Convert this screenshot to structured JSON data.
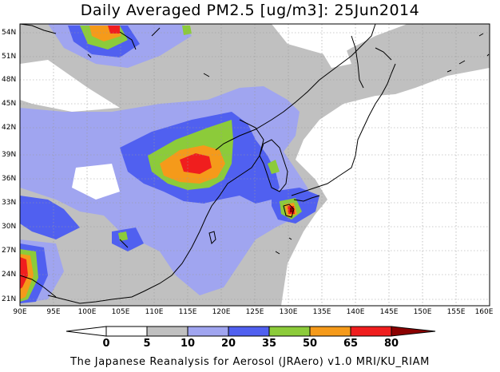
{
  "title": "Daily Averaged PM2.5 [ug/m3]: 25Jun2014",
  "footer": "The Japanese Reanalysis for Aerosol (JRAero) v1.0 MRI/KU_RIAM",
  "lat_labels": [
    "54N",
    "51N",
    "48N",
    "45N",
    "42N",
    "39N",
    "36N",
    "33N",
    "30N",
    "27N",
    "24N",
    "21N"
  ],
  "lon_labels": [
    "90E",
    "95E",
    "100E",
    "105E",
    "110E",
    "115E",
    "120E",
    "125E",
    "130E",
    "135E",
    "140E",
    "145E",
    "150E",
    "155E",
    "160E"
  ],
  "colorbar": {
    "ticks": [
      "0",
      "5",
      "10",
      "20",
      "35",
      "50",
      "65",
      "80"
    ],
    "colors": [
      "#ffffff",
      "#c0c0c0",
      "#a0a5f0",
      "#5060f0",
      "#8ccb3a",
      "#f59a1a",
      "#f01e1e",
      "#8b0000"
    ]
  }
}
